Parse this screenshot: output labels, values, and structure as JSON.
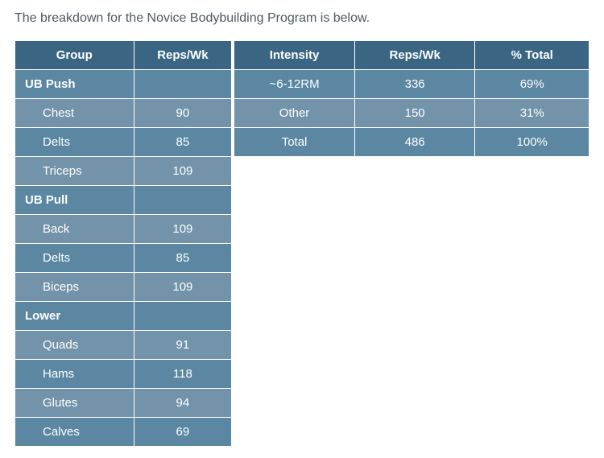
{
  "intro_text": "The breakdown for the Novice Bodybuilding Program is below.",
  "colors": {
    "intro_text": "#4a5a63",
    "header_bg": "#3a6683",
    "header_fg": "#ffffff",
    "row_alt1_bg": "#5b87a2",
    "row_alt2_bg": "#7293aa",
    "cell_fg": "#ffffff",
    "border": "#ffffff"
  },
  "left_table": {
    "headers": [
      "Group",
      "Reps/Wk"
    ],
    "rows": [
      {
        "type": "cat",
        "cells": [
          "UB Push",
          ""
        ]
      },
      {
        "type": "sub",
        "cells": [
          "Chest",
          "90"
        ]
      },
      {
        "type": "sub",
        "cells": [
          "Delts",
          "85"
        ]
      },
      {
        "type": "sub",
        "cells": [
          "Triceps",
          "109"
        ]
      },
      {
        "type": "cat",
        "cells": [
          "UB Pull",
          ""
        ]
      },
      {
        "type": "sub",
        "cells": [
          "Back",
          "109"
        ]
      },
      {
        "type": "sub",
        "cells": [
          "Delts",
          "85"
        ]
      },
      {
        "type": "sub",
        "cells": [
          "Biceps",
          "109"
        ]
      },
      {
        "type": "cat",
        "cells": [
          "Lower",
          ""
        ]
      },
      {
        "type": "sub",
        "cells": [
          "Quads",
          "91"
        ]
      },
      {
        "type": "sub",
        "cells": [
          "Hams",
          "118"
        ]
      },
      {
        "type": "sub",
        "cells": [
          "Glutes",
          "94"
        ]
      },
      {
        "type": "sub",
        "cells": [
          "Calves",
          "69"
        ]
      }
    ]
  },
  "right_table": {
    "headers": [
      "Intensity",
      "Reps/Wk",
      "% Total"
    ],
    "rows": [
      {
        "cells": [
          "~6-12RM",
          "336",
          "69%"
        ]
      },
      {
        "cells": [
          "Other",
          "150",
          "31%"
        ]
      },
      {
        "cells": [
          "Total",
          "486",
          "100%"
        ]
      }
    ]
  }
}
